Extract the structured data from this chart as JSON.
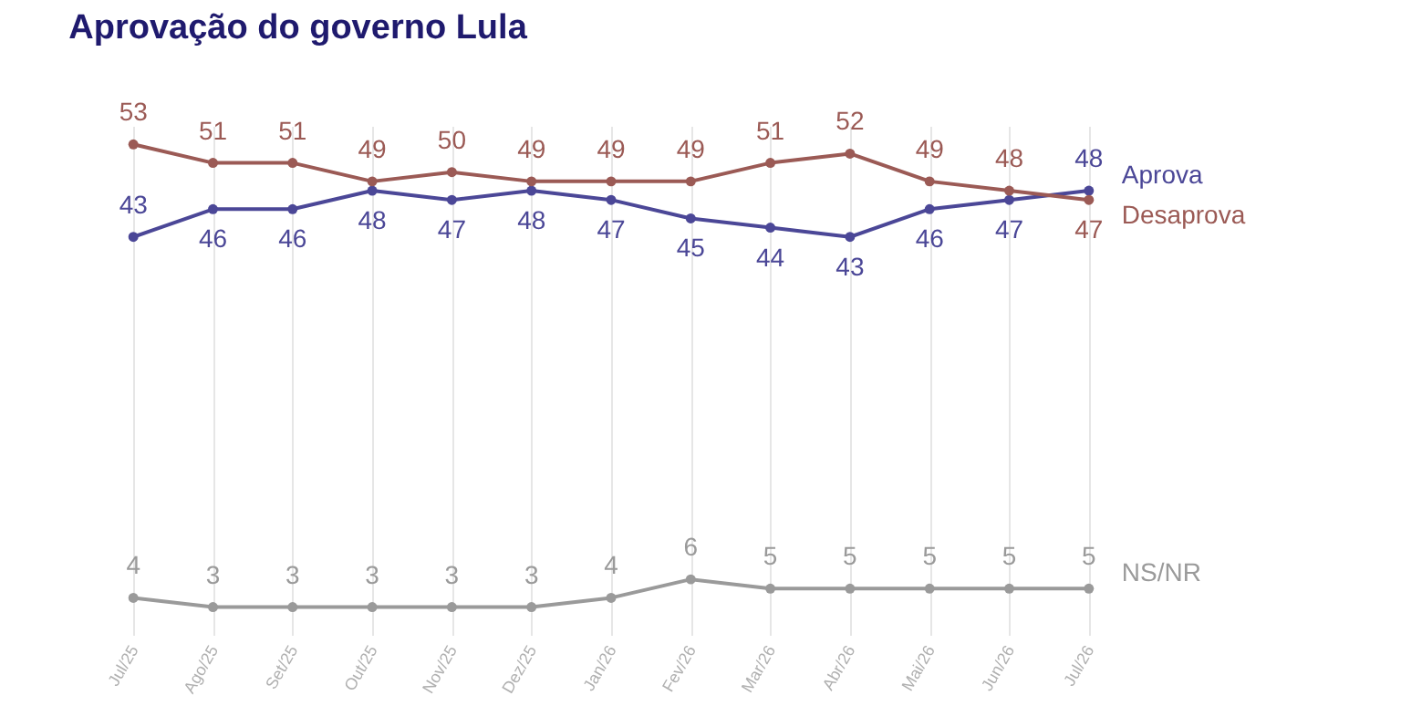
{
  "chart_data": {
    "type": "line",
    "title": "Aprovação do governo Lula",
    "categories": [
      "Jul/25",
      "Ago/25",
      "Set/25",
      "Out/25",
      "Nov/25",
      "Dez/25",
      "Jan/26",
      "Fev/26",
      "Mar/26",
      "Abr/26",
      "Mai/26",
      "Jun/26",
      "Jul/26"
    ],
    "series": [
      {
        "name": "Aprova",
        "color": "#4b4797",
        "values": [
          43,
          46,
          46,
          48,
          47,
          48,
          47,
          45,
          44,
          43,
          46,
          47,
          48
        ]
      },
      {
        "name": "Desaprova",
        "color": "#9b5a55",
        "values": [
          53,
          51,
          51,
          49,
          50,
          49,
          49,
          49,
          51,
          52,
          49,
          48,
          47
        ]
      },
      {
        "name": "NS/NR",
        "color": "#9a9a9a",
        "values": [
          4,
          3,
          3,
          3,
          3,
          3,
          4,
          6,
          5,
          5,
          5,
          5,
          5
        ]
      }
    ],
    "data_labels": true,
    "marker": "circle",
    "grid": "x",
    "legend": false,
    "tick_labels": "x",
    "relative": false
  }
}
